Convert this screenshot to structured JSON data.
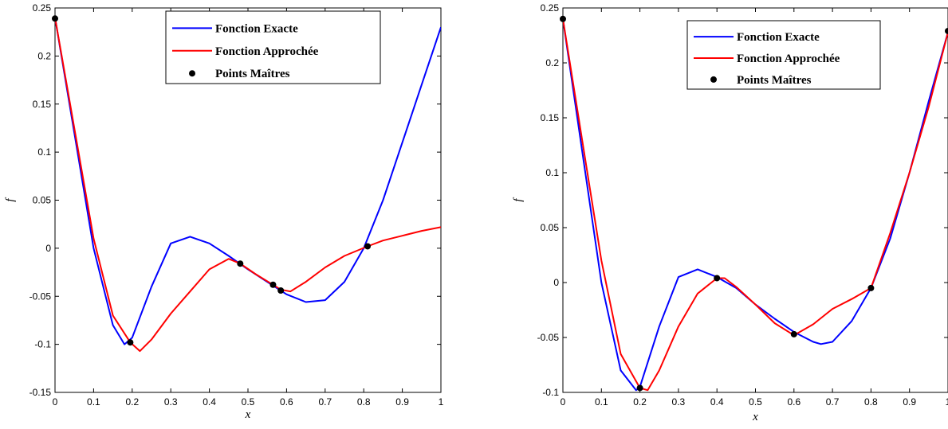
{
  "chart_data": [
    {
      "type": "line",
      "xlabel": "x",
      "ylabel": "f",
      "xlim": [
        0,
        1
      ],
      "ylim": [
        -0.15,
        0.25
      ],
      "xticks": [
        "0",
        "0.1",
        "0.2",
        "0.3",
        "0.4",
        "0.5",
        "0.6",
        "0.7",
        "0.8",
        "0.9",
        "1"
      ],
      "yticks": [
        "-0.15",
        "-0.1",
        "-0.05",
        "0",
        "0.05",
        "0.1",
        "0.15",
        "0.2",
        "0.25"
      ],
      "legend_position": "top-center",
      "series": [
        {
          "name": "Fonction Exacte",
          "color": "#0000ff",
          "x": [
            0,
            0.05,
            0.1,
            0.15,
            0.18,
            0.2,
            0.25,
            0.3,
            0.35,
            0.4,
            0.45,
            0.5,
            0.55,
            0.6,
            0.65,
            0.7,
            0.75,
            0.8,
            0.85,
            0.9,
            0.95,
            1.0
          ],
          "y": [
            0.24,
            0.12,
            0.0,
            -0.08,
            -0.1,
            -0.093,
            -0.04,
            0.005,
            0.012,
            0.005,
            -0.008,
            -0.022,
            -0.035,
            -0.048,
            -0.056,
            -0.054,
            -0.035,
            0.0,
            0.05,
            0.11,
            0.17,
            0.23
          ]
        },
        {
          "name": "Fonction Approchée",
          "color": "#ff0000",
          "x": [
            0,
            0.05,
            0.1,
            0.15,
            0.195,
            0.22,
            0.25,
            0.3,
            0.35,
            0.4,
            0.45,
            0.48,
            0.52,
            0.565,
            0.585,
            0.61,
            0.65,
            0.7,
            0.75,
            0.81,
            0.85,
            0.9,
            0.95,
            1.0
          ],
          "y": [
            0.24,
            0.125,
            0.01,
            -0.07,
            -0.098,
            -0.107,
            -0.095,
            -0.068,
            -0.045,
            -0.022,
            -0.011,
            -0.016,
            -0.027,
            -0.038,
            -0.043,
            -0.045,
            -0.035,
            -0.02,
            -0.008,
            0.002,
            0.008,
            0.013,
            0.018,
            0.022
          ]
        }
      ],
      "points": {
        "name": "Points Maîtres",
        "color": "#000000",
        "x": [
          0,
          0.195,
          0.48,
          0.565,
          0.585,
          0.81
        ],
        "y": [
          0.239,
          -0.098,
          -0.016,
          -0.038,
          -0.044,
          0.002
        ]
      }
    },
    {
      "type": "line",
      "xlabel": "x",
      "ylabel": "f",
      "xlim": [
        0,
        1
      ],
      "ylim": [
        -0.1,
        0.25
      ],
      "xticks": [
        "0",
        "0.1",
        "0.2",
        "0.3",
        "0.4",
        "0.5",
        "0.6",
        "0.7",
        "0.8",
        "0.9",
        "1"
      ],
      "yticks": [
        "-0.1",
        "-0.05",
        "0",
        "0.05",
        "0.1",
        "0.15",
        "0.2",
        "0.25"
      ],
      "legend_position": "top-right",
      "series": [
        {
          "name": "Fonction Exacte",
          "color": "#0000ff",
          "x": [
            0,
            0.05,
            0.1,
            0.15,
            0.19,
            0.2,
            0.25,
            0.3,
            0.35,
            0.4,
            0.45,
            0.5,
            0.55,
            0.6,
            0.65,
            0.67,
            0.7,
            0.75,
            0.8,
            0.85,
            0.9,
            0.95,
            1.0
          ],
          "y": [
            0.24,
            0.12,
            0.0,
            -0.08,
            -0.098,
            -0.095,
            -0.04,
            0.005,
            0.012,
            0.005,
            -0.005,
            -0.02,
            -0.033,
            -0.045,
            -0.054,
            -0.056,
            -0.054,
            -0.035,
            -0.005,
            0.04,
            0.1,
            0.165,
            0.228
          ]
        },
        {
          "name": "Fonction Approchée",
          "color": "#ff0000",
          "x": [
            0,
            0.05,
            0.1,
            0.15,
            0.2,
            0.22,
            0.25,
            0.3,
            0.35,
            0.4,
            0.42,
            0.45,
            0.5,
            0.55,
            0.6,
            0.65,
            0.7,
            0.75,
            0.8,
            0.85,
            0.9,
            0.95,
            1.0
          ],
          "y": [
            0.24,
            0.13,
            0.02,
            -0.065,
            -0.096,
            -0.098,
            -0.08,
            -0.04,
            -0.01,
            0.004,
            0.004,
            -0.004,
            -0.02,
            -0.037,
            -0.048,
            -0.038,
            -0.024,
            -0.015,
            -0.005,
            0.045,
            0.1,
            0.16,
            0.228
          ]
        }
      ],
      "points": {
        "name": "Points Maîtres",
        "color": "#000000",
        "x": [
          0,
          0.2,
          0.4,
          0.6,
          0.8,
          1.0
        ],
        "y": [
          0.24,
          -0.096,
          0.004,
          -0.047,
          -0.005,
          0.229
        ]
      }
    }
  ]
}
